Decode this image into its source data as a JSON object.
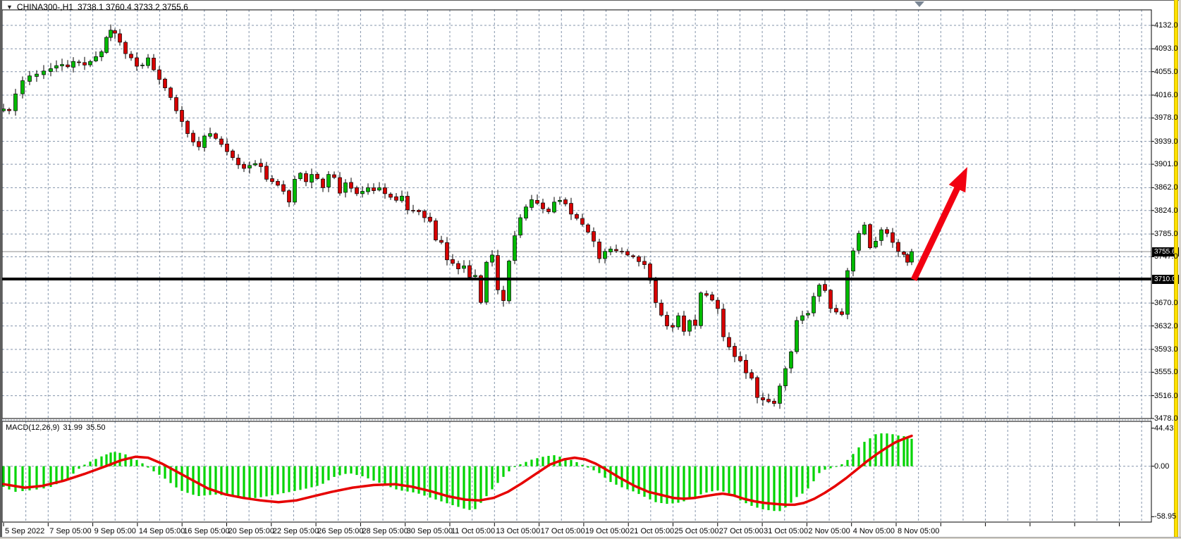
{
  "header": {
    "dropdown_icon": "▼",
    "title": "CHINA300-,H1",
    "ohlc_text": "3738.1 3760.4 3733.2 3755.6"
  },
  "badges": {
    "current_price_label": "3755.6",
    "hline_label": "3710.0"
  },
  "macd_panel": {
    "label": "MACD(12,26,9)",
    "macd_value": "31.99",
    "signal_value": "35.50"
  },
  "colors": {
    "bull": "#00ba00",
    "bear": "#d60000",
    "wick": "#000000",
    "grid": "#8494ab",
    "hist": "#00d400",
    "signal": "#e60000",
    "arrow": "#f20011",
    "hline": "#000000",
    "bidline": "#8c8c8c",
    "badge_bg": "#000000",
    "badge_fg": "#ffffff",
    "border": "#000000",
    "yellow": "#ffe000"
  },
  "chart_data": [
    {
      "type": "candlestick",
      "symbol": "CHINA300-",
      "timeframe": "H1",
      "title": "CHINA300-,H1",
      "last_candle": {
        "open": 3738.1,
        "high": 3760.4,
        "low": 3733.2,
        "close": 3755.6
      },
      "current_price": 3755.6,
      "support_line_price": 3710.0,
      "ylim": [
        3478.0,
        4158.0
      ],
      "grid": true,
      "y_ticks": [
        {
          "v": 4132,
          "label": "4132.0"
        },
        {
          "v": 4093,
          "label": "4093.0"
        },
        {
          "v": 4055,
          "label": "4055.0"
        },
        {
          "v": 4016,
          "label": "4016.0"
        },
        {
          "v": 3978,
          "label": "3978.0"
        },
        {
          "v": 3939,
          "label": "3939.0"
        },
        {
          "v": 3901,
          "label": "3901.0"
        },
        {
          "v": 3862,
          "label": "3862.0"
        },
        {
          "v": 3824,
          "label": "3824.0"
        },
        {
          "v": 3785,
          "label": "3785.0"
        },
        {
          "v": 3747,
          "label": "3747.0"
        },
        {
          "v": 3670,
          "label": "3670.0"
        },
        {
          "v": 3632,
          "label": "3632.0"
        },
        {
          "v": 3593,
          "label": "3593.0"
        },
        {
          "v": 3555,
          "label": "3555.0"
        },
        {
          "v": 3516,
          "label": "3516.0"
        },
        {
          "v": 3478,
          "label": "3478.0"
        }
      ],
      "x_labels": [
        "5 Sep 2022",
        "7 Sep 05:00",
        "9 Sep 05:00",
        "14 Sep 05:00",
        "16 Sep 05:00",
        "20 Sep 05:00",
        "22 Sep 05:00",
        "26 Sep 05:00",
        "28 Sep 05:00",
        "30 Sep 05:00",
        "11 Oct 05:00",
        "13 Oct 05:00",
        "17 Oct 05:00",
        "19 Oct 05:00",
        "21 Oct 05:00",
        "25 Oct 05:00",
        "27 Oct 05:00",
        "31 Oct 05:00",
        "2 Nov 05:00",
        "4 Nov 05:00",
        "8 Nov 05:00"
      ],
      "close_path": [
        [
          5,
          3993
        ],
        [
          13,
          3990
        ],
        [
          22,
          4018
        ],
        [
          32,
          4040
        ],
        [
          42,
          4048
        ],
        [
          52,
          4051
        ],
        [
          62,
          4056
        ],
        [
          72,
          4060
        ],
        [
          80,
          4065
        ],
        [
          88,
          4067
        ],
        [
          96,
          4063
        ],
        [
          104,
          4072
        ],
        [
          112,
          4070
        ],
        [
          120,
          4066
        ],
        [
          128,
          4072
        ],
        [
          136,
          4080
        ],
        [
          144,
          4088
        ],
        [
          151,
          4112
        ],
        [
          157,
          4124
        ],
        [
          163,
          4119
        ],
        [
          170,
          4104
        ],
        [
          178,
          4085
        ],
        [
          186,
          4078
        ],
        [
          194,
          4064
        ],
        [
          202,
          4066
        ],
        [
          210,
          4078
        ],
        [
          218,
          4058
        ],
        [
          226,
          4042
        ],
        [
          234,
          4028
        ],
        [
          242,
          4012
        ],
        [
          250,
          3990
        ],
        [
          258,
          3972
        ],
        [
          266,
          3952
        ],
        [
          274,
          3938
        ],
        [
          282,
          3930
        ],
        [
          290,
          3948
        ],
        [
          298,
          3952
        ],
        [
          306,
          3944
        ],
        [
          314,
          3934
        ],
        [
          322,
          3922
        ],
        [
          330,
          3912
        ],
        [
          338,
          3900
        ],
        [
          346,
          3894
        ],
        [
          354,
          3899
        ],
        [
          362,
          3902
        ],
        [
          370,
          3897
        ],
        [
          378,
          3876
        ],
        [
          386,
          3872
        ],
        [
          394,
          3866
        ],
        [
          402,
          3856
        ],
        [
          410,
          3838
        ],
        [
          418,
          3876
        ],
        [
          426,
          3886
        ],
        [
          434,
          3872
        ],
        [
          442,
          3884
        ],
        [
          450,
          3877
        ],
        [
          458,
          3862
        ],
        [
          466,
          3884
        ],
        [
          474,
          3879
        ],
        [
          482,
          3853
        ],
        [
          490,
          3870
        ],
        [
          498,
          3861
        ],
        [
          506,
          3852
        ],
        [
          514,
          3856
        ],
        [
          522,
          3862
        ],
        [
          530,
          3857
        ],
        [
          538,
          3862
        ],
        [
          546,
          3852
        ],
        [
          554,
          3846
        ],
        [
          562,
          3841
        ],
        [
          570,
          3848
        ],
        [
          578,
          3825
        ],
        [
          586,
          3824
        ],
        [
          594,
          3822
        ],
        [
          602,
          3812
        ],
        [
          610,
          3806
        ],
        [
          618,
          3775
        ],
        [
          626,
          3771
        ],
        [
          634,
          3742
        ],
        [
          642,
          3736
        ],
        [
          650,
          3727
        ],
        [
          658,
          3732
        ],
        [
          666,
          3713
        ],
        [
          674,
          3716
        ],
        [
          682,
          3671
        ],
        [
          690,
          3738
        ],
        [
          698,
          3750
        ],
        [
          706,
          3692
        ],
        [
          714,
          3674
        ],
        [
          722,
          3740
        ],
        [
          730,
          3782
        ],
        [
          738,
          3812
        ],
        [
          746,
          3830
        ],
        [
          754,
          3842
        ],
        [
          762,
          3836
        ],
        [
          770,
          3827
        ],
        [
          778,
          3822
        ],
        [
          786,
          3838
        ],
        [
          794,
          3841
        ],
        [
          802,
          3835
        ],
        [
          810,
          3818
        ],
        [
          818,
          3811
        ],
        [
          826,
          3801
        ],
        [
          834,
          3788
        ],
        [
          842,
          3773
        ],
        [
          850,
          3744
        ],
        [
          858,
          3756
        ],
        [
          866,
          3760
        ],
        [
          874,
          3757
        ],
        [
          882,
          3755
        ],
        [
          890,
          3750
        ],
        [
          898,
          3747
        ],
        [
          906,
          3739
        ],
        [
          914,
          3734
        ],
        [
          922,
          3708
        ],
        [
          930,
          3671
        ],
        [
          938,
          3650
        ],
        [
          946,
          3632
        ],
        [
          954,
          3630
        ],
        [
          962,
          3649
        ],
        [
          970,
          3623
        ],
        [
          978,
          3641
        ],
        [
          986,
          3633
        ],
        [
          994,
          3687
        ],
        [
          1002,
          3683
        ],
        [
          1010,
          3675
        ],
        [
          1018,
          3661
        ],
        [
          1026,
          3614
        ],
        [
          1034,
          3597
        ],
        [
          1042,
          3581
        ],
        [
          1050,
          3574
        ],
        [
          1058,
          3554
        ],
        [
          1066,
          3545
        ],
        [
          1074,
          3513
        ],
        [
          1082,
          3509
        ],
        [
          1090,
          3506
        ],
        [
          1098,
          3503
        ],
        [
          1106,
          3532
        ],
        [
          1114,
          3561
        ],
        [
          1122,
          3589
        ],
        [
          1130,
          3641
        ],
        [
          1138,
          3649
        ],
        [
          1146,
          3653
        ],
        [
          1154,
          3681
        ],
        [
          1162,
          3700
        ],
        [
          1170,
          3691
        ],
        [
          1178,
          3661
        ],
        [
          1186,
          3655
        ],
        [
          1194,
          3651
        ],
        [
          1202,
          3724
        ],
        [
          1210,
          3757
        ],
        [
          1218,
          3786
        ],
        [
          1226,
          3800
        ],
        [
          1234,
          3762
        ],
        [
          1242,
          3773
        ],
        [
          1250,
          3792
        ],
        [
          1258,
          3786
        ],
        [
          1266,
          3771
        ],
        [
          1274,
          3756
        ],
        [
          1282,
          3751
        ],
        [
          1287,
          3738
        ],
        [
          1293,
          3755.6
        ]
      ],
      "annotation_arrow": {
        "from": [
          1296,
          397
        ],
        "to": [
          1372,
          237
        ]
      }
    },
    {
      "type": "macd",
      "params": "12,26,9",
      "macd_current": 31.99,
      "signal_current": 35.5,
      "y_ticks": [
        {
          "v": 44.43,
          "label": "44.43"
        },
        {
          "v": 0,
          "label": "0.00"
        },
        {
          "v": -58.95,
          "label": "-58.95"
        }
      ],
      "histogram_path": [
        [
          5,
          -24
        ],
        [
          20,
          -30
        ],
        [
          45,
          -28
        ],
        [
          70,
          -25
        ],
        [
          95,
          -15
        ],
        [
          112,
          -3
        ],
        [
          122,
          3
        ],
        [
          140,
          10
        ],
        [
          160,
          17
        ],
        [
          175,
          15
        ],
        [
          190,
          9
        ],
        [
          205,
          2
        ],
        [
          212,
          -3
        ],
        [
          230,
          -12
        ],
        [
          255,
          -28
        ],
        [
          280,
          -35
        ],
        [
          305,
          -33
        ],
        [
          330,
          -35
        ],
        [
          355,
          -38
        ],
        [
          380,
          -35
        ],
        [
          405,
          -31
        ],
        [
          430,
          -27
        ],
        [
          455,
          -22
        ],
        [
          475,
          -12
        ],
        [
          495,
          -8
        ],
        [
          515,
          -12
        ],
        [
          540,
          -20
        ],
        [
          565,
          -28
        ],
        [
          590,
          -31
        ],
        [
          615,
          -38
        ],
        [
          640,
          -45
        ],
        [
          660,
          -50
        ],
        [
          672,
          -52
        ],
        [
          685,
          -40
        ],
        [
          700,
          -25
        ],
        [
          712,
          -14
        ],
        [
          722,
          -6
        ],
        [
          730,
          -1
        ],
        [
          740,
          3
        ],
        [
          755,
          8
        ],
        [
          770,
          11
        ],
        [
          785,
          13
        ],
        [
          800,
          10
        ],
        [
          815,
          6
        ],
        [
          825,
          2
        ],
        [
          835,
          -2
        ],
        [
          850,
          -8
        ],
        [
          865,
          -18
        ],
        [
          880,
          -24
        ],
        [
          900,
          -30
        ],
        [
          915,
          -36
        ],
        [
          930,
          -42
        ],
        [
          945,
          -44
        ],
        [
          960,
          -43
        ],
        [
          975,
          -40
        ],
        [
          990,
          -34
        ],
        [
          1005,
          -30
        ],
        [
          1020,
          -28
        ],
        [
          1035,
          -32
        ],
        [
          1050,
          -40
        ],
        [
          1065,
          -46
        ],
        [
          1080,
          -50
        ],
        [
          1095,
          -52
        ],
        [
          1105,
          -53
        ],
        [
          1118,
          -46
        ],
        [
          1130,
          -36
        ],
        [
          1142,
          -30
        ],
        [
          1152,
          -20
        ],
        [
          1162,
          -8
        ],
        [
          1172,
          -3
        ],
        [
          1182,
          -2
        ],
        [
          1192,
          1
        ],
        [
          1203,
          8
        ],
        [
          1213,
          17
        ],
        [
          1223,
          27
        ],
        [
          1233,
          32
        ],
        [
          1243,
          38
        ],
        [
          1253,
          38.5
        ],
        [
          1263,
          38
        ],
        [
          1273,
          36
        ],
        [
          1283,
          35
        ],
        [
          1293,
          31.99
        ]
      ],
      "signal_path": [
        [
          5,
          -21
        ],
        [
          35,
          -25
        ],
        [
          60,
          -23
        ],
        [
          90,
          -17
        ],
        [
          120,
          -9
        ],
        [
          150,
          0
        ],
        [
          172,
          7
        ],
        [
          192,
          11
        ],
        [
          210,
          10
        ],
        [
          230,
          3
        ],
        [
          250,
          -6
        ],
        [
          270,
          -15
        ],
        [
          295,
          -26
        ],
        [
          320,
          -33
        ],
        [
          345,
          -37
        ],
        [
          370,
          -40
        ],
        [
          395,
          -42
        ],
        [
          420,
          -40
        ],
        [
          445,
          -35
        ],
        [
          470,
          -30
        ],
        [
          500,
          -25
        ],
        [
          530,
          -22
        ],
        [
          560,
          -21
        ],
        [
          585,
          -24
        ],
        [
          610,
          -29
        ],
        [
          635,
          -35
        ],
        [
          660,
          -39
        ],
        [
          680,
          -40
        ],
        [
          700,
          -37
        ],
        [
          720,
          -30
        ],
        [
          740,
          -20
        ],
        [
          760,
          -9
        ],
        [
          780,
          2
        ],
        [
          800,
          8
        ],
        [
          815,
          10
        ],
        [
          830,
          8
        ],
        [
          845,
          3
        ],
        [
          860,
          -4
        ],
        [
          880,
          -14
        ],
        [
          900,
          -23
        ],
        [
          920,
          -30
        ],
        [
          940,
          -34
        ],
        [
          955,
          -37
        ],
        [
          970,
          -38
        ],
        [
          985,
          -37
        ],
        [
          1000,
          -35
        ],
        [
          1015,
          -33
        ],
        [
          1025,
          -32
        ],
        [
          1040,
          -34
        ],
        [
          1055,
          -38
        ],
        [
          1070,
          -41
        ],
        [
          1085,
          -43
        ],
        [
          1100,
          -44
        ],
        [
          1115,
          -45
        ],
        [
          1127,
          -45
        ],
        [
          1140,
          -43
        ],
        [
          1155,
          -38
        ],
        [
          1170,
          -31
        ],
        [
          1185,
          -23
        ],
        [
          1200,
          -14
        ],
        [
          1215,
          -4
        ],
        [
          1230,
          6
        ],
        [
          1245,
          15
        ],
        [
          1258,
          22
        ],
        [
          1270,
          28
        ],
        [
          1282,
          32
        ],
        [
          1293,
          35.5
        ]
      ]
    }
  ]
}
